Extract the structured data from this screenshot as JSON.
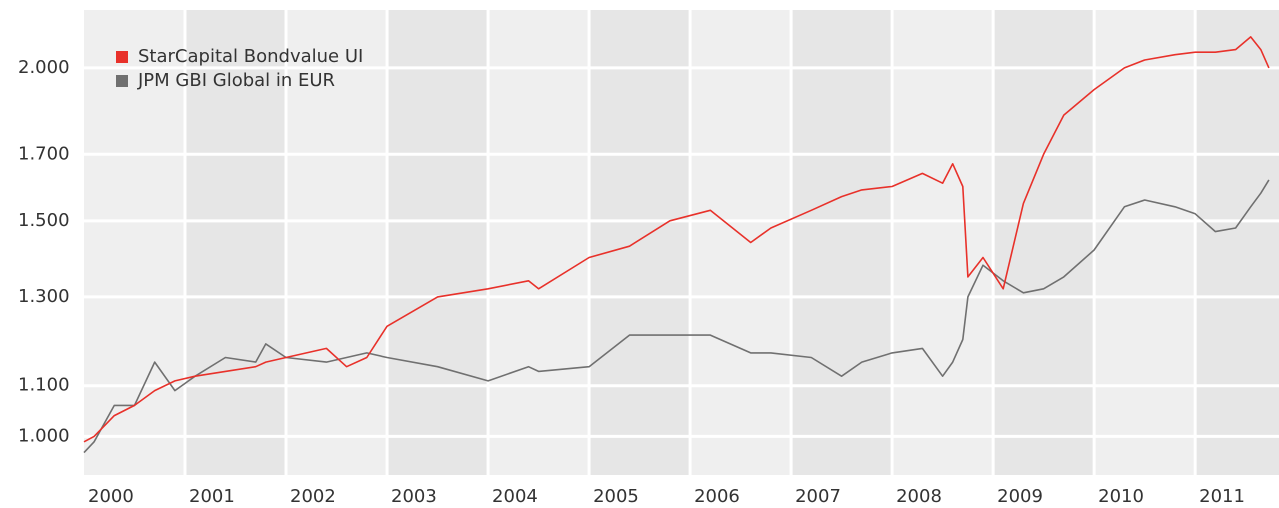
{
  "chart_data": {
    "type": "line",
    "x": [
      2000.0,
      2000.1,
      2000.3,
      2000.5,
      2000.7,
      2000.9,
      2001.1,
      2001.4,
      2001.7,
      2001.8,
      2002.0,
      2002.4,
      2002.6,
      2002.8,
      2003.0,
      2003.5,
      2004.0,
      2004.4,
      2004.5,
      2005.0,
      2005.4,
      2005.8,
      2006.2,
      2006.6,
      2006.8,
      2007.2,
      2007.5,
      2007.7,
      2008.0,
      2008.3,
      2008.5,
      2008.6,
      2008.7,
      2008.75,
      2008.9,
      2009.1,
      2009.3,
      2009.5,
      2009.7,
      2010.0,
      2010.3,
      2010.5,
      2010.8,
      2011.0,
      2011.2,
      2011.4,
      2011.55,
      2011.65,
      2011.73
    ],
    "series": [
      {
        "name": "StarCapital Bondvalue UI",
        "color": "#e8312a",
        "values": [
          990,
          1000,
          1040,
          1060,
          1090,
          1110,
          1120,
          1130,
          1140,
          1150,
          1160,
          1180,
          1140,
          1160,
          1230,
          1300,
          1320,
          1340,
          1320,
          1400,
          1430,
          1500,
          1530,
          1440,
          1480,
          1530,
          1570,
          1590,
          1600,
          1640,
          1610,
          1670,
          1600,
          1350,
          1400,
          1320,
          1550,
          1700,
          1830,
          1920,
          2000,
          2030,
          2050,
          2060,
          2060,
          2070,
          2120,
          2070,
          2000
        ]
      },
      {
        "name": "JPM GBI Global in EUR",
        "color": "#707070",
        "values": [
          970,
          990,
          1060,
          1060,
          1150,
          1090,
          1120,
          1160,
          1150,
          1190,
          1160,
          1150,
          1160,
          1170,
          1160,
          1140,
          1110,
          1140,
          1130,
          1140,
          1210,
          1210,
          1210,
          1170,
          1170,
          1160,
          1120,
          1150,
          1170,
          1180,
          1120,
          1150,
          1200,
          1300,
          1380,
          1340,
          1310,
          1320,
          1350,
          1420,
          1540,
          1560,
          1540,
          1520,
          1470,
          1480,
          1540,
          1580,
          1620
        ]
      }
    ],
    "xlim": [
      2000,
      2011.83
    ],
    "xticks": [
      2000,
      2001,
      2002,
      2003,
      2004,
      2005,
      2006,
      2007,
      2008,
      2009,
      2010,
      2011
    ],
    "ylim": [
      930,
      2230
    ],
    "log_y": true,
    "yticks": [
      {
        "value": 1000,
        "label": "1.000"
      },
      {
        "value": 1100,
        "label": "1.100"
      },
      {
        "value": 1300,
        "label": "1.300"
      },
      {
        "value": 1500,
        "label": "1.500"
      },
      {
        "value": 1700,
        "label": "1.700"
      },
      {
        "value": 2000,
        "label": "2.000"
      }
    ],
    "grid": true,
    "legend": "upper left"
  }
}
